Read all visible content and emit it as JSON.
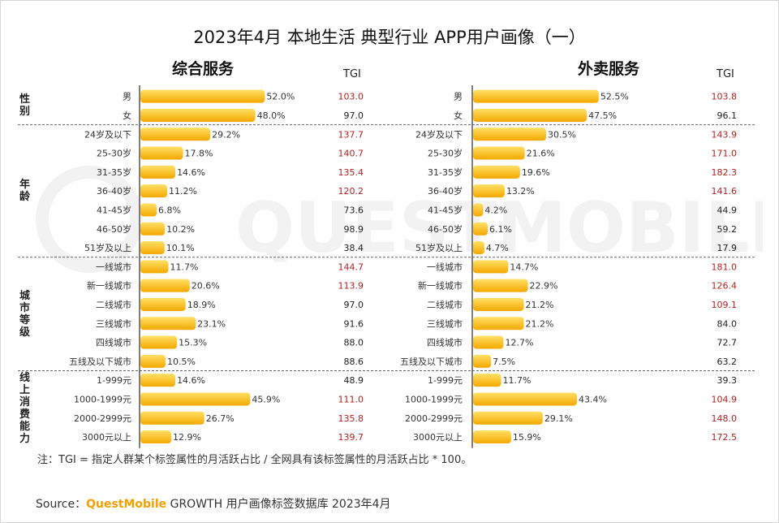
{
  "title": "2023年4月  本地生活 典型行业 APP用户画像（一）",
  "tgi_label": "TGI",
  "watermark": "QUESTMOBILE",
  "note": "注：TGI = 指定人群某个标签属性的月活跃占比 / 全网具有该标签属性的月活跃占比 * 100。",
  "source": {
    "prefix": "Source：",
    "brand": "QuestMobile",
    "text": " GROWTH 用户画像标签数据库 2023年4月"
  },
  "groups": [
    {
      "label": "性别",
      "start": 0,
      "end": 1
    },
    {
      "label": "年龄",
      "start": 2,
      "end": 8
    },
    {
      "label": "城市等级",
      "start": 9,
      "end": 14
    },
    {
      "label": "线上消费能力",
      "start": 15,
      "end": 18
    }
  ],
  "colors": {
    "bar_light": "#ffe066",
    "bar_dark": "#f5a800",
    "tgi_high": "#b22222",
    "tgi_normal": "#222222",
    "divider": "#666666"
  },
  "chart_data": [
    {
      "type": "bar",
      "title": "综合服务",
      "categories": [
        "男",
        "女",
        "24岁及以下",
        "25-30岁",
        "31-35岁",
        "36-40岁",
        "41-45岁",
        "46-50岁",
        "51岁及以上",
        "一线城市",
        "新一线城市",
        "二线城市",
        "三线城市",
        "四线城市",
        "五线及以下城市",
        "1-999元",
        "1000-1999元",
        "2000-2999元",
        "3000元以上"
      ],
      "values": [
        52.0,
        48.0,
        29.2,
        17.8,
        14.6,
        11.2,
        6.8,
        10.2,
        10.1,
        11.7,
        20.6,
        18.9,
        23.1,
        15.3,
        10.5,
        14.6,
        45.9,
        26.7,
        12.9
      ],
      "labels": [
        "52.0%",
        "48.0%",
        "29.2%",
        "17.8%",
        "14.6%",
        "11.2%",
        "6.8%",
        "10.2%",
        "10.1%",
        "11.7%",
        "20.6%",
        "18.9%",
        "23.1%",
        "15.3%",
        "10.5%",
        "14.6%",
        "45.9%",
        "26.7%",
        "12.9%"
      ],
      "tgi": [
        "103.0",
        "97.0",
        "137.7",
        "140.7",
        "135.4",
        "120.2",
        "73.6",
        "98.9",
        "38.4",
        "144.7",
        "113.9",
        "97.0",
        "91.6",
        "88.0",
        "88.6",
        "48.9",
        "111.0",
        "135.8",
        "139.7"
      ],
      "unit": "%"
    },
    {
      "type": "bar",
      "title": "外卖服务",
      "categories": [
        "男",
        "女",
        "24岁及以下",
        "25-30岁",
        "31-35岁",
        "36-40岁",
        "41-45岁",
        "46-50岁",
        "51岁及以上",
        "一线城市",
        "新一线城市",
        "二线城市",
        "三线城市",
        "四线城市",
        "五线及以下城市",
        "1-999元",
        "1000-1999元",
        "2000-2999元",
        "3000元以上"
      ],
      "values": [
        52.5,
        47.5,
        30.5,
        21.6,
        19.6,
        13.2,
        4.2,
        6.1,
        4.7,
        14.7,
        22.9,
        21.2,
        21.2,
        12.7,
        7.5,
        11.7,
        43.4,
        29.1,
        15.9
      ],
      "labels": [
        "52.5%",
        "47.5%",
        "30.5%",
        "21.6%",
        "19.6%",
        "13.2%",
        "4.2%",
        "6.1%",
        "4.7%",
        "14.7%",
        "22.9%",
        "21.2%",
        "21.2%",
        "12.7%",
        "7.5%",
        "11.7%",
        "43.4%",
        "29.1%",
        "15.9%"
      ],
      "tgi": [
        "103.8",
        "96.1",
        "143.9",
        "171.0",
        "182.3",
        "141.6",
        "44.9",
        "59.2",
        "17.9",
        "181.0",
        "126.4",
        "109.1",
        "84.0",
        "72.7",
        "63.2",
        "39.3",
        "104.9",
        "148.0",
        "172.5"
      ],
      "unit": "%"
    }
  ]
}
